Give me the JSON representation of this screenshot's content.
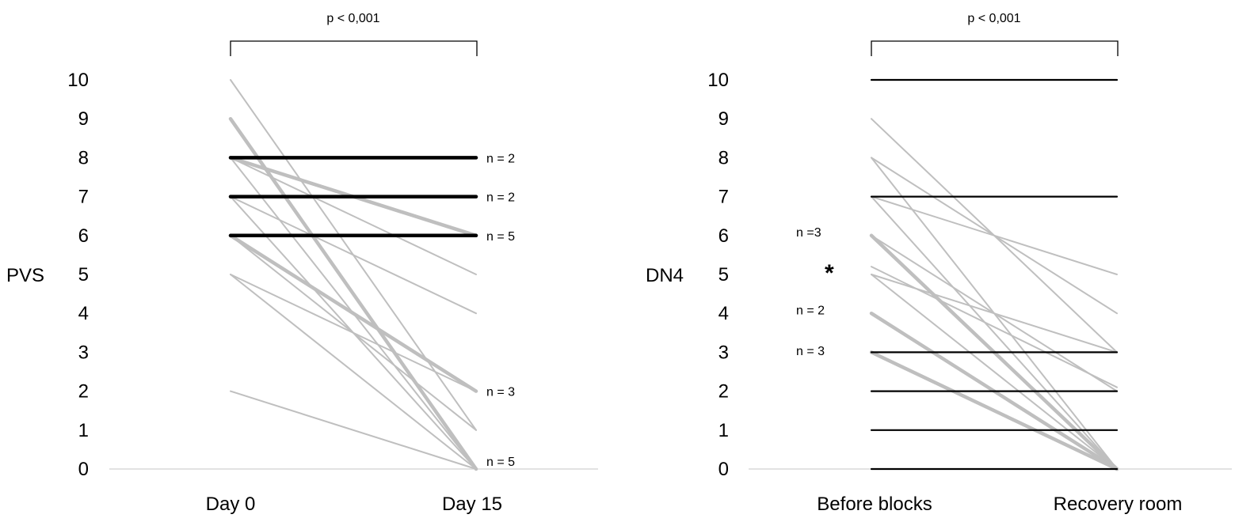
{
  "chart_data": [
    {
      "type": "line",
      "ylabel": "PVS",
      "categories": [
        "Day 0",
        "Day 15"
      ],
      "yticks": [
        0,
        1,
        2,
        3,
        4,
        5,
        6,
        7,
        8,
        9,
        10
      ],
      "ylim": [
        0,
        10
      ],
      "significance": "p < 0,001",
      "grid": false,
      "series": [
        {
          "values": [
            8,
            8
          ],
          "color": "#000000",
          "weight": "thick"
        },
        {
          "values": [
            7,
            7
          ],
          "color": "#000000",
          "weight": "thick"
        },
        {
          "values": [
            6,
            6
          ],
          "color": "#000000",
          "weight": "thick"
        },
        {
          "values": [
            8,
            6
          ],
          "color": "#bfbfbf",
          "weight": "thick"
        },
        {
          "values": [
            6,
            2
          ],
          "color": "#bfbfbf",
          "weight": "thick"
        },
        {
          "values": [
            9,
            0
          ],
          "color": "#bfbfbf",
          "weight": "thick"
        },
        {
          "values": [
            10,
            1
          ],
          "color": "#bfbfbf",
          "weight": "thin"
        },
        {
          "values": [
            8,
            5
          ],
          "color": "#bfbfbf",
          "weight": "thin"
        },
        {
          "values": [
            8,
            0
          ],
          "color": "#bfbfbf",
          "weight": "thin"
        },
        {
          "values": [
            7,
            4
          ],
          "color": "#bfbfbf",
          "weight": "thin"
        },
        {
          "values": [
            7,
            0
          ],
          "color": "#bfbfbf",
          "weight": "thin"
        },
        {
          "values": [
            6,
            1
          ],
          "color": "#bfbfbf",
          "weight": "thin"
        },
        {
          "values": [
            5,
            2
          ],
          "color": "#bfbfbf",
          "weight": "thin"
        },
        {
          "values": [
            5,
            0
          ],
          "color": "#bfbfbf",
          "weight": "thin"
        },
        {
          "values": [
            2,
            0
          ],
          "color": "#bfbfbf",
          "weight": "thin"
        }
      ],
      "annotations": [
        {
          "text": "n = 2",
          "y": 8
        },
        {
          "text": "n = 2",
          "y": 7
        },
        {
          "text": "n = 5",
          "y": 6
        },
        {
          "text": "n = 3",
          "y": 2
        },
        {
          "text": "n = 5",
          "y": 0.2
        }
      ]
    },
    {
      "type": "line",
      "ylabel": "DN4",
      "categories": [
        "Before blocks",
        "Recovery room"
      ],
      "yticks": [
        0,
        1,
        2,
        3,
        4,
        5,
        6,
        7,
        8,
        9,
        10
      ],
      "ylim": [
        0,
        10
      ],
      "significance": "p < 0,001",
      "grid": false,
      "series": [
        {
          "values": [
            10,
            10
          ],
          "color": "#000000",
          "weight": "medium"
        },
        {
          "values": [
            7,
            7
          ],
          "color": "#000000",
          "weight": "medium"
        },
        {
          "values": [
            3,
            3
          ],
          "color": "#000000",
          "weight": "medium"
        },
        {
          "values": [
            2,
            2
          ],
          "color": "#000000",
          "weight": "medium"
        },
        {
          "values": [
            1,
            1
          ],
          "color": "#000000",
          "weight": "medium"
        },
        {
          "values": [
            0,
            0
          ],
          "color": "#000000",
          "weight": "medium"
        },
        {
          "values": [
            6,
            0
          ],
          "color": "#bfbfbf",
          "weight": "thick"
        },
        {
          "values": [
            4,
            0
          ],
          "color": "#bfbfbf",
          "weight": "thick"
        },
        {
          "values": [
            3,
            0
          ],
          "color": "#bfbfbf",
          "weight": "thick"
        },
        {
          "values": [
            9,
            3
          ],
          "color": "#bfbfbf",
          "weight": "thin"
        },
        {
          "values": [
            8,
            4
          ],
          "color": "#bfbfbf",
          "weight": "thin"
        },
        {
          "values": [
            8,
            0
          ],
          "color": "#bfbfbf",
          "weight": "thin"
        },
        {
          "values": [
            7,
            5
          ],
          "color": "#bfbfbf",
          "weight": "thin"
        },
        {
          "values": [
            7,
            0
          ],
          "color": "#bfbfbf",
          "weight": "thin"
        },
        {
          "values": [
            6,
            2
          ],
          "color": "#bfbfbf",
          "weight": "thin"
        },
        {
          "values": [
            5.2,
            2.1
          ],
          "color": "#bfbfbf",
          "weight": "thin"
        },
        {
          "values": [
            5,
            3
          ],
          "color": "#bfbfbf",
          "weight": "thin"
        },
        {
          "values": [
            5,
            0
          ],
          "color": "#bfbfbf",
          "weight": "thin"
        }
      ],
      "annotations": [
        {
          "text": "n =3",
          "y": 6.1
        },
        {
          "text": "*",
          "y": 5.2
        },
        {
          "text": "n = 2",
          "y": 4.1
        },
        {
          "text": "n = 3",
          "y": 3.05
        }
      ]
    }
  ]
}
